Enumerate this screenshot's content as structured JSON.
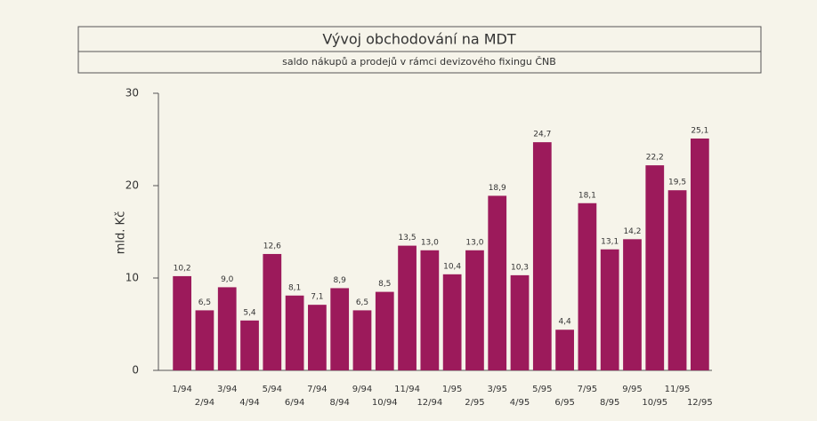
{
  "chart_data": {
    "type": "bar",
    "title": "Vývoj obchodování na MDT",
    "subtitle": "saldo nákupů a prodejů v rámci devizového fixingu ČNB",
    "y_label": "mld. Kč",
    "categories": [
      "1/94",
      "2/94",
      "3/94",
      "4/94",
      "5/94",
      "6/94",
      "7/94",
      "8/94",
      "9/94",
      "10/94",
      "11/94",
      "12/94",
      "1/95",
      "2/95",
      "3/95",
      "4/95",
      "5/95",
      "6/95",
      "7/95",
      "8/95",
      "9/95",
      "10/95",
      "11/95",
      "12/95"
    ],
    "values": [
      10.2,
      6.5,
      9.0,
      5.4,
      12.6,
      8.1,
      7.1,
      8.9,
      6.5,
      8.5,
      13.5,
      13.0,
      10.4,
      13.0,
      18.9,
      10.3,
      24.7,
      4.4,
      18.1,
      13.1,
      14.2,
      22.2,
      19.5,
      25.1
    ],
    "value_labels": [
      "10,2",
      "6,5",
      "9,0",
      "5,4",
      "12,6",
      "8,1",
      "7,1",
      "8,9",
      "6,5",
      "8,5",
      "13,5",
      "13,0",
      "10,4",
      "13,0",
      "18,9",
      "10,3",
      "24,7",
      "4,4",
      "18,1",
      "13,1",
      "14,2",
      "22,2",
      "19,5",
      "25,1"
    ],
    "color": "#9c1a5b",
    "ylim": [
      0,
      30
    ],
    "yticks": [
      0,
      10,
      20,
      30
    ],
    "grid": false
  }
}
